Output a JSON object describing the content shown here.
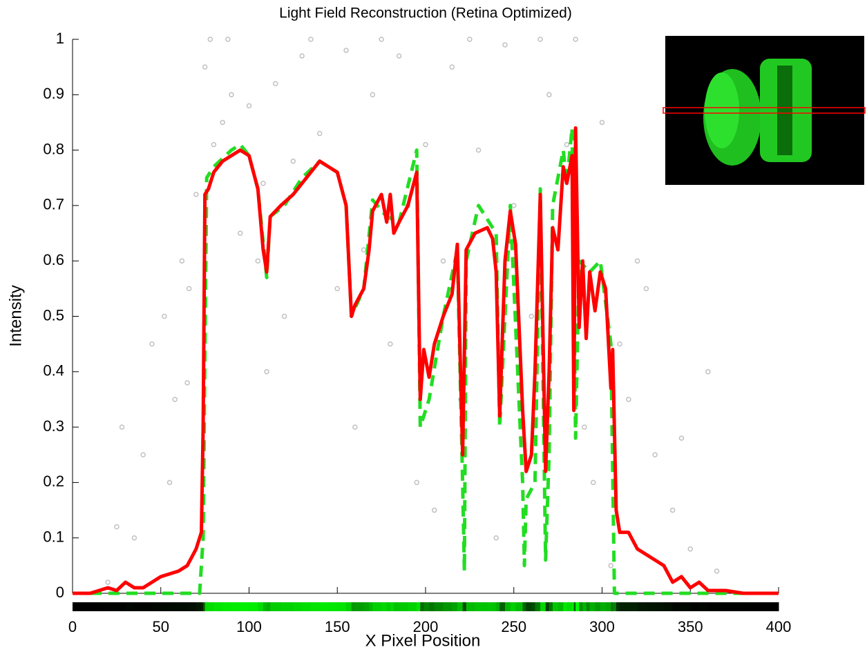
{
  "chart_data": {
    "type": "line",
    "title": "Light Field Reconstruction (Retina Optimized)",
    "x_label": "X Pixel Position",
    "y_label": "Intensity",
    "xlim": [
      0,
      400
    ],
    "ylim": [
      0,
      1
    ],
    "xticks": [
      0,
      50,
      100,
      150,
      200,
      250,
      300,
      350,
      400
    ],
    "yticks": [
      0,
      0.1,
      0.2,
      0.3,
      0.4,
      0.5,
      0.6,
      0.7,
      0.8,
      0.9,
      1
    ],
    "series": [
      {
        "type": "scatter",
        "color": "#c0c0c0",
        "x": [
          20,
          28,
          35,
          40,
          45,
          52,
          58,
          62,
          66,
          70,
          75,
          80,
          85,
          90,
          95,
          100,
          105,
          110,
          115,
          120,
          125,
          130,
          140,
          150,
          160,
          165,
          170,
          180,
          190,
          195,
          200,
          205,
          210,
          215,
          220,
          230,
          240,
          250,
          260,
          270,
          280,
          290,
          300,
          305,
          310,
          315,
          320,
          330,
          340,
          350,
          360,
          365,
          25,
          55,
          65,
          78,
          88,
          108,
          135,
          155,
          175,
          185,
          225,
          245,
          265,
          285,
          295,
          325,
          345
        ],
        "values": [
          0.02,
          0.3,
          0.1,
          0.25,
          0.45,
          0.5,
          0.35,
          0.6,
          0.55,
          0.72,
          0.95,
          0.81,
          0.85,
          0.9,
          0.65,
          0.88,
          0.6,
          0.4,
          0.92,
          0.5,
          0.78,
          0.97,
          0.83,
          0.55,
          0.3,
          0.62,
          0.9,
          0.45,
          0.7,
          0.2,
          0.81,
          0.15,
          0.6,
          0.95,
          0.35,
          0.8,
          0.1,
          0.7,
          0.5,
          0.9,
          0.81,
          0.3,
          0.85,
          0.05,
          0.45,
          0.35,
          0.6,
          0.25,
          0.15,
          0.08,
          0.4,
          0.04,
          0.12,
          0.2,
          0.38,
          1,
          1,
          0.74,
          1,
          0.98,
          1,
          0.97,
          1,
          0.99,
          1,
          1,
          0.2,
          0.55,
          0.28
        ]
      },
      {
        "type": "line",
        "style": "dashed",
        "color": "#22dd22",
        "x": [
          0,
          72,
          74,
          76,
          80,
          90,
          95,
          100,
          105,
          110,
          112,
          120,
          130,
          140,
          150,
          155,
          158,
          165,
          170,
          178,
          185,
          195,
          197,
          202,
          210,
          218,
          221,
          222,
          223,
          230,
          240,
          242,
          248,
          255,
          256,
          257,
          262,
          265,
          268,
          270,
          272,
          278,
          280,
          283,
          285,
          287,
          293,
          299,
          305,
          307,
          400
        ],
        "values": [
          0,
          0,
          0.1,
          0.75,
          0.77,
          0.8,
          0.81,
          0.79,
          0.73,
          0.57,
          0.68,
          0.7,
          0.75,
          0.78,
          0.76,
          0.7,
          0.5,
          0.55,
          0.71,
          0.68,
          0.67,
          0.8,
          0.3,
          0.35,
          0.5,
          0.62,
          0.2,
          0.04,
          0.6,
          0.7,
          0.65,
          0.3,
          0.7,
          0.2,
          0.05,
          0.17,
          0.2,
          0.73,
          0.06,
          0.25,
          0.7,
          0.8,
          0.74,
          0.84,
          0.28,
          0.6,
          0.58,
          0.6,
          0.45,
          0,
          0
        ]
      },
      {
        "type": "line",
        "style": "solid",
        "color": "#ff0000",
        "x": [
          0,
          10,
          15,
          20,
          25,
          30,
          35,
          40,
          45,
          50,
          55,
          60,
          65,
          70,
          73,
          74,
          75,
          77,
          80,
          85,
          90,
          95,
          100,
          105,
          108,
          110,
          112,
          118,
          125,
          130,
          135,
          140,
          145,
          150,
          155,
          158,
          160,
          165,
          168,
          170,
          175,
          178,
          180,
          182,
          185,
          190,
          195,
          197,
          199,
          202,
          205,
          210,
          215,
          218,
          221,
          223,
          228,
          235,
          238,
          240,
          242,
          245,
          248,
          251,
          255,
          257,
          260,
          262,
          265,
          268,
          270,
          272,
          275,
          278,
          280,
          283,
          284,
          285,
          287,
          289,
          291,
          293,
          296,
          299,
          302,
          305,
          306,
          308,
          310,
          315,
          320,
          325,
          330,
          335,
          340,
          345,
          350,
          355,
          360,
          370,
          380,
          390,
          400
        ],
        "values": [
          0,
          0,
          0.005,
          0.01,
          0.005,
          0.02,
          0.01,
          0.01,
          0.02,
          0.03,
          0.035,
          0.04,
          0.05,
          0.08,
          0.11,
          0.3,
          0.72,
          0.73,
          0.76,
          0.78,
          0.79,
          0.8,
          0.79,
          0.73,
          0.62,
          0.58,
          0.68,
          0.7,
          0.72,
          0.74,
          0.76,
          0.78,
          0.77,
          0.76,
          0.7,
          0.5,
          0.52,
          0.55,
          0.62,
          0.69,
          0.72,
          0.67,
          0.72,
          0.65,
          0.67,
          0.7,
          0.76,
          0.35,
          0.44,
          0.39,
          0.45,
          0.5,
          0.54,
          0.63,
          0.25,
          0.62,
          0.65,
          0.66,
          0.64,
          0.58,
          0.32,
          0.6,
          0.69,
          0.63,
          0.33,
          0.22,
          0.25,
          0.4,
          0.72,
          0.22,
          0.4,
          0.66,
          0.62,
          0.77,
          0.74,
          0.79,
          0.33,
          0.84,
          0.48,
          0.6,
          0.46,
          0.58,
          0.51,
          0.58,
          0.55,
          0.37,
          0.44,
          0.15,
          0.11,
          0.11,
          0.08,
          0.07,
          0.06,
          0.05,
          0.02,
          0.03,
          0.01,
          0.02,
          0.005,
          0.005,
          0,
          0,
          0
        ]
      }
    ]
  }
}
